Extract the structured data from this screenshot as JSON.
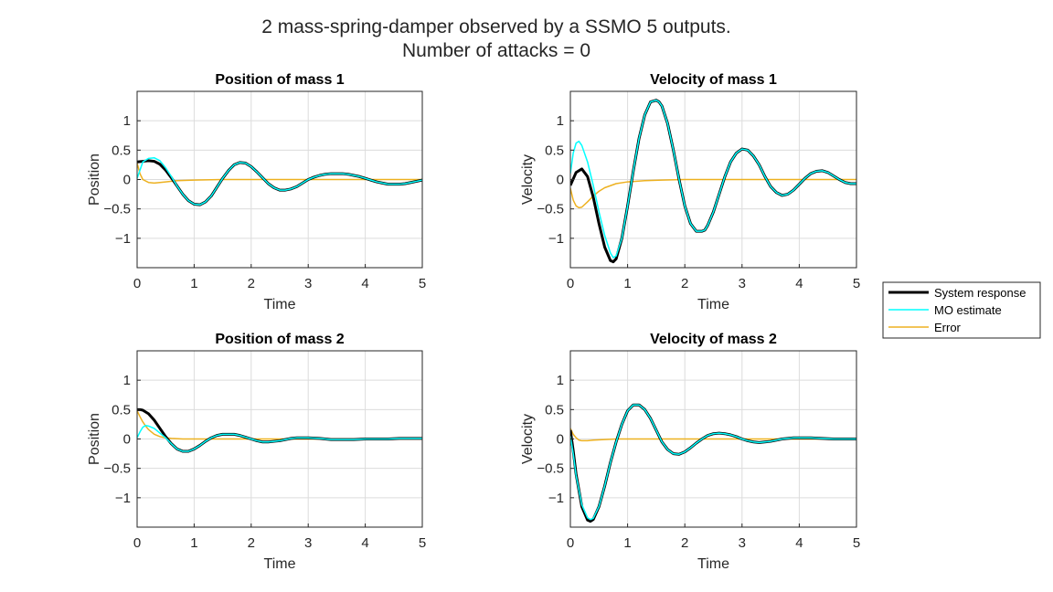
{
  "figure": {
    "title_line1": "2 mass-spring-damper observed by a SSMO 5 outputs.",
    "title_line2": "Number of attacks = 0"
  },
  "legend": {
    "location": "outside right",
    "entries": [
      {
        "label": "System response",
        "color": "#000000"
      },
      {
        "label": "MO estimate",
        "color": "#00ffff"
      },
      {
        "label": "Error",
        "color": "#edb120"
      }
    ]
  },
  "chart_data": [
    {
      "type": "line",
      "title": "Position of mass 1",
      "xlabel": "Time",
      "ylabel": "Position",
      "xlim": [
        0,
        5
      ],
      "ylim": [
        -1.5,
        1.5
      ],
      "xticks": [
        0,
        1,
        2,
        3,
        4,
        5
      ],
      "yticks": [
        -1,
        -0.5,
        0,
        0.5,
        1
      ],
      "grid": true,
      "series": [
        {
          "name": "System response",
          "color": "#000000",
          "x": [
            0,
            0.1,
            0.2,
            0.3,
            0.4,
            0.5,
            0.6,
            0.7,
            0.8,
            0.9,
            1.0,
            1.1,
            1.2,
            1.3,
            1.4,
            1.5,
            1.6,
            1.7,
            1.8,
            1.9,
            2.0,
            2.1,
            2.2,
            2.3,
            2.4,
            2.5,
            2.6,
            2.7,
            2.8,
            2.9,
            3.0,
            3.1,
            3.2,
            3.3,
            3.4,
            3.5,
            3.6,
            3.7,
            3.8,
            3.9,
            4.0,
            4.1,
            4.2,
            4.3,
            4.4,
            4.5,
            4.6,
            4.7,
            4.8,
            4.9,
            5.0
          ],
          "y": [
            0.3,
            0.31,
            0.32,
            0.31,
            0.26,
            0.16,
            0.03,
            -0.11,
            -0.25,
            -0.36,
            -0.42,
            -0.43,
            -0.38,
            -0.28,
            -0.13,
            0.02,
            0.15,
            0.25,
            0.29,
            0.28,
            0.22,
            0.13,
            0.03,
            -0.07,
            -0.14,
            -0.18,
            -0.18,
            -0.16,
            -0.12,
            -0.06,
            0.0,
            0.04,
            0.07,
            0.09,
            0.1,
            0.1,
            0.1,
            0.09,
            0.07,
            0.05,
            0.02,
            -0.01,
            -0.04,
            -0.06,
            -0.08,
            -0.08,
            -0.08,
            -0.07,
            -0.05,
            -0.03,
            -0.01
          ]
        },
        {
          "name": "MO estimate",
          "color": "#00ffff",
          "x": [
            0,
            0.1,
            0.2,
            0.3,
            0.4,
            0.5,
            0.6,
            0.7,
            0.8,
            0.9,
            1.0,
            1.1,
            1.2,
            1.3,
            1.4,
            1.5,
            1.6,
            1.7,
            1.8,
            1.9,
            2.0,
            2.1,
            2.2,
            2.3,
            2.4,
            2.5,
            2.6,
            2.7,
            2.8,
            2.9,
            3.0,
            3.1,
            3.2,
            3.3,
            3.4,
            3.5,
            3.6,
            3.7,
            3.8,
            3.9,
            4.0,
            4.1,
            4.2,
            4.3,
            4.4,
            4.5,
            4.6,
            4.7,
            4.8,
            4.9,
            5.0
          ],
          "y": [
            0.02,
            0.3,
            0.36,
            0.37,
            0.32,
            0.2,
            0.05,
            -0.11,
            -0.25,
            -0.36,
            -0.42,
            -0.43,
            -0.38,
            -0.28,
            -0.13,
            0.02,
            0.15,
            0.25,
            0.29,
            0.28,
            0.22,
            0.13,
            0.03,
            -0.07,
            -0.14,
            -0.18,
            -0.18,
            -0.16,
            -0.12,
            -0.06,
            0.0,
            0.04,
            0.07,
            0.09,
            0.1,
            0.1,
            0.1,
            0.09,
            0.07,
            0.05,
            0.02,
            -0.01,
            -0.04,
            -0.06,
            -0.08,
            -0.08,
            -0.08,
            -0.07,
            -0.05,
            -0.03,
            -0.01
          ]
        },
        {
          "name": "Error",
          "color": "#edb120",
          "x": [
            0,
            0.05,
            0.1,
            0.2,
            0.3,
            0.4,
            0.5,
            0.7,
            1.0,
            1.5,
            2.0,
            3.0,
            4.0,
            5.0
          ],
          "y": [
            0.28,
            0.1,
            0.0,
            -0.05,
            -0.06,
            -0.05,
            -0.04,
            -0.02,
            -0.01,
            0.0,
            0.0,
            0.0,
            0.0,
            0.0
          ]
        }
      ]
    },
    {
      "type": "line",
      "title": "Velocity of mass 1",
      "xlabel": "Time",
      "ylabel": "Velocity",
      "xlim": [
        0,
        5
      ],
      "ylim": [
        -1.5,
        1.5
      ],
      "xticks": [
        0,
        1,
        2,
        3,
        4,
        5
      ],
      "yticks": [
        -1,
        -0.5,
        0,
        0.5,
        1
      ],
      "grid": true,
      "series": [
        {
          "name": "System response",
          "color": "#000000",
          "x": [
            0,
            0.1,
            0.2,
            0.3,
            0.4,
            0.5,
            0.6,
            0.7,
            0.75,
            0.8,
            0.9,
            1.0,
            1.1,
            1.2,
            1.3,
            1.4,
            1.5,
            1.55,
            1.6,
            1.7,
            1.8,
            1.9,
            2.0,
            2.1,
            2.2,
            2.3,
            2.35,
            2.4,
            2.5,
            2.6,
            2.7,
            2.8,
            2.9,
            3.0,
            3.1,
            3.2,
            3.3,
            3.4,
            3.5,
            3.6,
            3.7,
            3.8,
            3.9,
            4.0,
            4.1,
            4.2,
            4.3,
            4.4,
            4.5,
            4.6,
            4.7,
            4.8,
            4.9,
            5.0
          ],
          "y": [
            -0.1,
            0.12,
            0.18,
            0.05,
            -0.3,
            -0.75,
            -1.15,
            -1.38,
            -1.4,
            -1.35,
            -1.0,
            -0.45,
            0.15,
            0.7,
            1.1,
            1.32,
            1.35,
            1.32,
            1.25,
            0.95,
            0.5,
            0.0,
            -0.45,
            -0.75,
            -0.88,
            -0.88,
            -0.86,
            -0.78,
            -0.55,
            -0.25,
            0.05,
            0.3,
            0.45,
            0.52,
            0.5,
            0.4,
            0.25,
            0.05,
            -0.12,
            -0.22,
            -0.27,
            -0.25,
            -0.18,
            -0.08,
            0.02,
            0.1,
            0.14,
            0.15,
            0.12,
            0.06,
            -0.0,
            -0.05,
            -0.07,
            -0.07
          ]
        },
        {
          "name": "MO estimate",
          "color": "#00ffff",
          "x": [
            0,
            0.05,
            0.1,
            0.15,
            0.2,
            0.3,
            0.4,
            0.5,
            0.6,
            0.7,
            0.75,
            0.8,
            0.9,
            1.0,
            1.1,
            1.2,
            1.3,
            1.4,
            1.5,
            1.55,
            1.6,
            1.7,
            1.8,
            1.9,
            2.0,
            2.1,
            2.2,
            2.3,
            2.35,
            2.4,
            2.5,
            2.6,
            2.7,
            2.8,
            2.9,
            3.0,
            3.1,
            3.2,
            3.3,
            3.4,
            3.5,
            3.6,
            3.7,
            3.8,
            3.9,
            4.0,
            4.1,
            4.2,
            4.3,
            4.4,
            4.5,
            4.6,
            4.7,
            4.8,
            4.9,
            5.0
          ],
          "y": [
            0.1,
            0.45,
            0.62,
            0.65,
            0.58,
            0.3,
            -0.1,
            -0.55,
            -0.95,
            -1.25,
            -1.33,
            -1.3,
            -1.0,
            -0.45,
            0.15,
            0.7,
            1.1,
            1.32,
            1.35,
            1.32,
            1.25,
            0.95,
            0.5,
            0.0,
            -0.45,
            -0.75,
            -0.88,
            -0.88,
            -0.86,
            -0.78,
            -0.55,
            -0.25,
            0.05,
            0.3,
            0.45,
            0.52,
            0.5,
            0.4,
            0.25,
            0.05,
            -0.12,
            -0.22,
            -0.27,
            -0.25,
            -0.18,
            -0.08,
            0.02,
            0.1,
            0.14,
            0.15,
            0.12,
            0.06,
            -0.0,
            -0.05,
            -0.07,
            -0.07
          ]
        },
        {
          "name": "Error",
          "color": "#edb120",
          "x": [
            0,
            0.05,
            0.1,
            0.15,
            0.2,
            0.3,
            0.4,
            0.5,
            0.6,
            0.8,
            1.0,
            1.3,
            1.6,
            2.0,
            3.0,
            4.0,
            5.0
          ],
          "y": [
            -0.15,
            -0.35,
            -0.45,
            -0.48,
            -0.47,
            -0.38,
            -0.28,
            -0.2,
            -0.14,
            -0.07,
            -0.04,
            -0.02,
            -0.01,
            0.0,
            0.0,
            0.0,
            0.0
          ]
        }
      ]
    },
    {
      "type": "line",
      "title": "Position of mass 2",
      "xlabel": "Time",
      "ylabel": "Position",
      "xlim": [
        0,
        5
      ],
      "ylim": [
        -1.5,
        1.5
      ],
      "xticks": [
        0,
        1,
        2,
        3,
        4,
        5
      ],
      "yticks": [
        -1,
        -0.5,
        0,
        0.5,
        1
      ],
      "grid": true,
      "series": [
        {
          "name": "System response",
          "color": "#000000",
          "x": [
            0,
            0.05,
            0.1,
            0.2,
            0.3,
            0.4,
            0.5,
            0.6,
            0.7,
            0.8,
            0.9,
            1.0,
            1.1,
            1.2,
            1.3,
            1.4,
            1.5,
            1.6,
            1.7,
            1.8,
            1.9,
            2.0,
            2.1,
            2.2,
            2.3,
            2.4,
            2.5,
            2.6,
            2.7,
            2.8,
            2.9,
            3.0,
            3.2,
            3.4,
            3.6,
            3.8,
            4.0,
            4.2,
            4.4,
            4.6,
            4.8,
            5.0
          ],
          "y": [
            0.5,
            0.5,
            0.49,
            0.43,
            0.32,
            0.18,
            0.04,
            -0.08,
            -0.17,
            -0.21,
            -0.21,
            -0.17,
            -0.11,
            -0.04,
            0.02,
            0.06,
            0.08,
            0.08,
            0.08,
            0.06,
            0.03,
            0.0,
            -0.03,
            -0.05,
            -0.05,
            -0.04,
            -0.03,
            -0.01,
            0.01,
            0.02,
            0.02,
            0.02,
            0.01,
            -0.01,
            -0.01,
            -0.01,
            0.0,
            0.0,
            0.0,
            0.01,
            0.01,
            0.01
          ]
        },
        {
          "name": "MO estimate",
          "color": "#00ffff",
          "x": [
            0,
            0.05,
            0.1,
            0.15,
            0.2,
            0.3,
            0.4,
            0.5,
            0.6,
            0.7,
            0.8,
            0.9,
            1.0,
            1.1,
            1.2,
            1.3,
            1.4,
            1.5,
            1.6,
            1.7,
            1.8,
            1.9,
            2.0,
            2.1,
            2.2,
            2.3,
            2.4,
            2.5,
            2.6,
            2.7,
            2.8,
            2.9,
            3.0,
            3.2,
            3.4,
            3.6,
            3.8,
            4.0,
            4.2,
            4.4,
            4.6,
            4.8,
            5.0
          ],
          "y": [
            0.02,
            0.12,
            0.2,
            0.23,
            0.22,
            0.18,
            0.1,
            0.02,
            -0.08,
            -0.17,
            -0.21,
            -0.21,
            -0.17,
            -0.11,
            -0.04,
            0.02,
            0.06,
            0.08,
            0.08,
            0.08,
            0.06,
            0.03,
            0.0,
            -0.03,
            -0.05,
            -0.05,
            -0.04,
            -0.03,
            -0.01,
            0.01,
            0.02,
            0.02,
            0.02,
            0.01,
            -0.01,
            -0.01,
            -0.01,
            0.0,
            0.0,
            0.0,
            0.01,
            0.01,
            0.01
          ]
        },
        {
          "name": "Error",
          "color": "#edb120",
          "x": [
            0,
            0.05,
            0.1,
            0.15,
            0.2,
            0.3,
            0.4,
            0.5,
            0.6,
            0.8,
            1.0,
            1.5,
            2.0,
            3.0,
            4.0,
            5.0
          ],
          "y": [
            0.48,
            0.38,
            0.29,
            0.22,
            0.16,
            0.08,
            0.04,
            0.02,
            0.01,
            0.0,
            0.0,
            0.0,
            0.0,
            0.0,
            0.0,
            0.0
          ]
        }
      ]
    },
    {
      "type": "line",
      "title": "Velocity of mass 2",
      "xlabel": "Time",
      "ylabel": "Velocity",
      "xlim": [
        0,
        5
      ],
      "ylim": [
        -1.5,
        1.5
      ],
      "xticks": [
        0,
        1,
        2,
        3,
        4,
        5
      ],
      "yticks": [
        -1,
        -0.5,
        0,
        0.5,
        1
      ],
      "grid": true,
      "series": [
        {
          "name": "System response",
          "color": "#000000",
          "x": [
            0,
            0.05,
            0.1,
            0.2,
            0.3,
            0.35,
            0.4,
            0.5,
            0.6,
            0.7,
            0.8,
            0.9,
            1.0,
            1.1,
            1.2,
            1.3,
            1.4,
            1.5,
            1.6,
            1.7,
            1.8,
            1.9,
            2.0,
            2.1,
            2.2,
            2.3,
            2.4,
            2.5,
            2.6,
            2.7,
            2.8,
            2.9,
            3.0,
            3.1,
            3.2,
            3.3,
            3.4,
            3.5,
            3.6,
            3.7,
            3.8,
            3.9,
            4.0,
            4.2,
            4.4,
            4.6,
            4.8,
            5.0
          ],
          "y": [
            0.15,
            -0.2,
            -0.6,
            -1.15,
            -1.38,
            -1.4,
            -1.37,
            -1.15,
            -0.8,
            -0.4,
            -0.05,
            0.25,
            0.48,
            0.58,
            0.58,
            0.5,
            0.35,
            0.15,
            -0.05,
            -0.18,
            -0.25,
            -0.26,
            -0.22,
            -0.15,
            -0.07,
            0.0,
            0.06,
            0.09,
            0.1,
            0.09,
            0.07,
            0.04,
            0.0,
            -0.03,
            -0.05,
            -0.06,
            -0.05,
            -0.04,
            -0.02,
            0.0,
            0.01,
            0.02,
            0.02,
            0.02,
            0.01,
            0.0,
            0.0,
            0.0
          ]
        },
        {
          "name": "MO estimate",
          "color": "#00ffff",
          "x": [
            0,
            0.05,
            0.1,
            0.2,
            0.3,
            0.35,
            0.4,
            0.5,
            0.6,
            0.7,
            0.8,
            0.9,
            1.0,
            1.1,
            1.2,
            1.3,
            1.4,
            1.5,
            1.6,
            1.7,
            1.8,
            1.9,
            2.0,
            2.1,
            2.2,
            2.3,
            2.4,
            2.5,
            2.6,
            2.7,
            2.8,
            2.9,
            3.0,
            3.1,
            3.2,
            3.3,
            3.4,
            3.5,
            3.6,
            3.7,
            3.8,
            3.9,
            4.0,
            4.2,
            4.4,
            4.6,
            4.8,
            5.0
          ],
          "y": [
            0.05,
            -0.25,
            -0.62,
            -1.12,
            -1.34,
            -1.37,
            -1.35,
            -1.15,
            -0.8,
            -0.4,
            -0.05,
            0.25,
            0.48,
            0.58,
            0.58,
            0.5,
            0.35,
            0.15,
            -0.05,
            -0.18,
            -0.25,
            -0.26,
            -0.22,
            -0.15,
            -0.07,
            0.0,
            0.06,
            0.09,
            0.1,
            0.09,
            0.07,
            0.04,
            0.0,
            -0.03,
            -0.05,
            -0.06,
            -0.05,
            -0.04,
            -0.02,
            0.0,
            0.01,
            0.02,
            0.02,
            0.02,
            0.01,
            0.0,
            0.0,
            0.0
          ]
        },
        {
          "name": "Error",
          "color": "#edb120",
          "x": [
            0,
            0.05,
            0.1,
            0.15,
            0.2,
            0.3,
            0.4,
            0.6,
            0.8,
            1.0,
            1.5,
            2.0,
            3.0,
            4.0,
            5.0
          ],
          "y": [
            0.18,
            0.08,
            0.02,
            -0.02,
            -0.03,
            -0.03,
            -0.02,
            -0.01,
            0.0,
            0.0,
            0.0,
            0.0,
            0.0,
            0.0,
            0.0
          ]
        }
      ]
    }
  ]
}
